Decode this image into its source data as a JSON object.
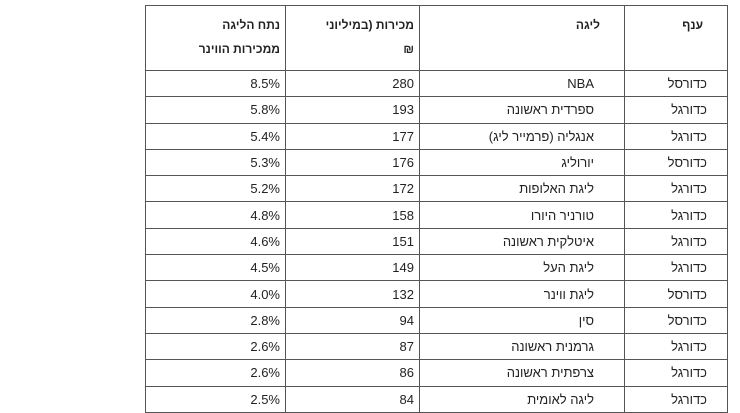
{
  "table": {
    "headers": [
      [
        "ענף"
      ],
      [
        "ליגה"
      ],
      [
        "מכירות (במיליוני",
        "₪"
      ],
      [
        "נתח הליגה",
        "ממכירות הווינר"
      ]
    ],
    "rows": [
      [
        "כדורסל",
        "NBA",
        280,
        "8.5%"
      ],
      [
        "כדורגל",
        "ספרדית ראשונה",
        193,
        "5.8%"
      ],
      [
        "כדורגל",
        "אנגליה (פרמייר ליג)",
        177,
        "5.4%"
      ],
      [
        "כדורסל",
        "יורוליג",
        176,
        "5.3%"
      ],
      [
        "כדורגל",
        "ליגת האלופות",
        172,
        "5.2%"
      ],
      [
        "כדורגל",
        "טורניר היורו",
        158,
        "4.8%"
      ],
      [
        "כדורגל",
        "איטלקית ראשונה",
        151,
        "4.6%"
      ],
      [
        "כדורגל",
        "ליגת העל",
        149,
        "4.5%"
      ],
      [
        "כדורסל",
        "ליגת ווינר",
        132,
        "4.0%"
      ],
      [
        "כדורסל",
        "סין",
        94,
        "2.8%"
      ],
      [
        "כדורגל",
        "גרמנית ראשונה",
        87,
        "2.6%"
      ],
      [
        "כדורגל",
        "צרפתית ראשונה",
        86,
        "2.6%"
      ],
      [
        "כדורגל",
        "ליגה לאומית",
        84,
        "2.5%"
      ]
    ]
  }
}
